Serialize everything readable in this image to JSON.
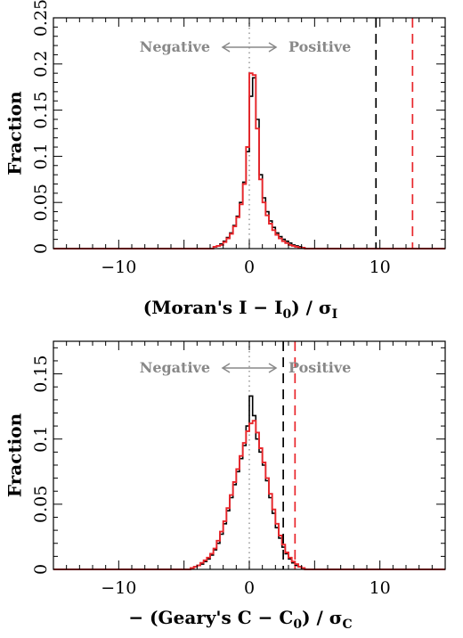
{
  "chart_data": [
    {
      "type": "line",
      "ylabel": "Fraction",
      "xlabel": {
        "main": "(Moran's I − I",
        "sub0": "0",
        "mid": ") / σ",
        "sub1": "I"
      },
      "xlim": [
        -15,
        15
      ],
      "ylim": [
        0,
        0.25
      ],
      "xticks": [
        -10,
        0,
        10
      ],
      "xtick_labels": [
        "−10",
        "0",
        "10"
      ],
      "yticks": [
        0,
        0.05,
        0.1,
        0.15,
        0.2,
        0.25
      ],
      "ytick_labels": [
        "0",
        "0.05",
        "0.1",
        "0.15",
        "0.2",
        "0.25"
      ],
      "annotations": {
        "negative": "Negative",
        "positive": "Positive",
        "arrow_center_x": 0
      },
      "zero_line_x": 0,
      "vlines": [
        {
          "x": 9.7,
          "color": "#000000",
          "style": "dashed"
        },
        {
          "x": 12.5,
          "color": "#e8262b",
          "style": "dashed"
        }
      ],
      "series": [
        {
          "color": "#000000",
          "bin_width": 0.25,
          "x_start": -3.0,
          "values": [
            0.0,
            0.002,
            0.003,
            0.005,
            0.008,
            0.012,
            0.017,
            0.025,
            0.035,
            0.05,
            0.072,
            0.105,
            0.165,
            0.185,
            0.14,
            0.08,
            0.055,
            0.04,
            0.03,
            0.023,
            0.017,
            0.013,
            0.01,
            0.008,
            0.006,
            0.004,
            0.003,
            0.002,
            0.001,
            0.0
          ]
        },
        {
          "color": "#e8262b",
          "bin_width": 0.25,
          "x_start": -3.0,
          "values": [
            0.0,
            0.002,
            0.003,
            0.004,
            0.007,
            0.011,
            0.016,
            0.024,
            0.034,
            0.048,
            0.07,
            0.11,
            0.19,
            0.188,
            0.13,
            0.075,
            0.05,
            0.036,
            0.027,
            0.02,
            0.015,
            0.011,
            0.008,
            0.006,
            0.004,
            0.003,
            0.002,
            0.001,
            0.001,
            0.0
          ]
        }
      ]
    },
    {
      "type": "line",
      "ylabel": "Fraction",
      "xlabel": {
        "main": "− (Geary's C − C",
        "sub0": "0",
        "mid": ") / σ",
        "sub1": "C"
      },
      "xlim": [
        -15,
        15
      ],
      "ylim": [
        0,
        0.175
      ],
      "xticks": [
        -10,
        0,
        10
      ],
      "xtick_labels": [
        "−10",
        "0",
        "10"
      ],
      "yticks": [
        0,
        0.05,
        0.1,
        0.15
      ],
      "ytick_labels": [
        "0",
        "0.05",
        "0.1",
        "0.15"
      ],
      "annotations": {
        "negative": "Negative",
        "positive": "Positive",
        "arrow_center_x": 0
      },
      "zero_line_x": 0,
      "vlines": [
        {
          "x": 2.6,
          "color": "#000000",
          "style": "dashed"
        },
        {
          "x": 3.5,
          "color": "#e8262b",
          "style": "dashed"
        }
      ],
      "series": [
        {
          "color": "#000000",
          "bin_width": 0.25,
          "x_start": -4.5,
          "values": [
            0.001,
            0.002,
            0.003,
            0.004,
            0.006,
            0.008,
            0.011,
            0.015,
            0.02,
            0.027,
            0.035,
            0.045,
            0.055,
            0.065,
            0.075,
            0.085,
            0.095,
            0.11,
            0.133,
            0.118,
            0.1,
            0.09,
            0.08,
            0.068,
            0.055,
            0.043,
            0.032,
            0.024,
            0.017,
            0.012,
            0.008,
            0.005,
            0.003,
            0.002,
            0.001,
            0.0
          ]
        },
        {
          "color": "#e8262b",
          "bin_width": 0.25,
          "x_start": -4.5,
          "values": [
            0.001,
            0.002,
            0.003,
            0.005,
            0.007,
            0.009,
            0.012,
            0.016,
            0.022,
            0.029,
            0.037,
            0.047,
            0.057,
            0.067,
            0.077,
            0.087,
            0.097,
            0.106,
            0.112,
            0.114,
            0.105,
            0.093,
            0.082,
            0.07,
            0.058,
            0.046,
            0.035,
            0.026,
            0.019,
            0.013,
            0.009,
            0.006,
            0.004,
            0.002,
            0.001,
            0.0
          ]
        }
      ]
    }
  ]
}
